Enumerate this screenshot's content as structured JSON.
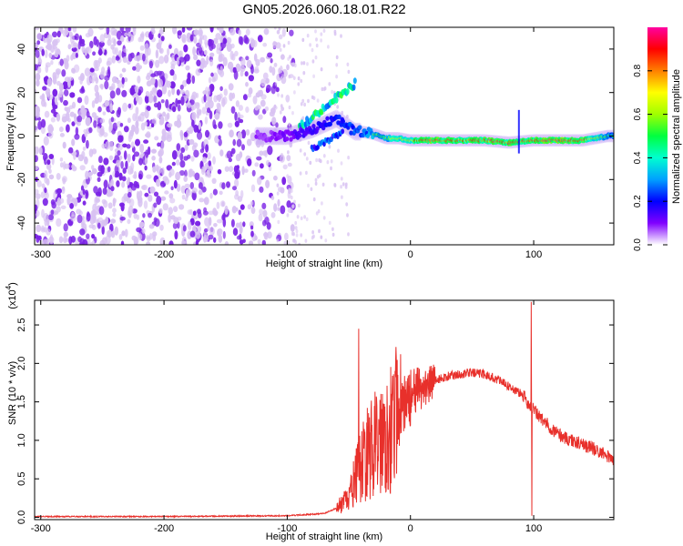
{
  "title": "GN05.2026.060.18.01.R22",
  "colors": {
    "background": "#ffffff",
    "axis": "#000000",
    "snr_line": "#e8302b",
    "spectro_noise_light": "#d8c2f2",
    "spectro_noise_dark": "#7a22e6",
    "colormap_stops": [
      "#ffffff",
      "#8000ff",
      "#0000ff",
      "#00a0ff",
      "#00ffd0",
      "#00ff40",
      "#a0ff00",
      "#ffff00",
      "#ff8000",
      "#ff0000",
      "#ff00a0"
    ]
  },
  "chart_data": [
    {
      "type": "heatmap",
      "name": "spectrogram",
      "xlabel": "Height of straight line (km)",
      "ylabel": "Frequency (Hz)",
      "xlim": [
        -305,
        165
      ],
      "ylim": [
        -50,
        50
      ],
      "xticks": [
        -300,
        -200,
        -100,
        0,
        100
      ],
      "xtick_labels": [
        "-300",
        "-200",
        "-100",
        "0",
        "100"
      ],
      "yticks": [
        -40,
        -20,
        0,
        20,
        40
      ],
      "ytick_labels": [
        "-40",
        "-20",
        "0",
        "20",
        "40"
      ],
      "colorbar": {
        "label": "Normalized spectral amplitude",
        "range": [
          0,
          1
        ],
        "ticks": [
          0.0,
          0.2,
          0.4,
          0.6,
          0.8
        ],
        "tick_labels": [
          "0.0",
          "0.2",
          "0.4",
          "0.6",
          "0.8"
        ]
      },
      "ridge": {
        "description_points_x": [
          -120,
          -100,
          -80,
          -60,
          -45,
          -40,
          -30,
          -20,
          -10,
          0,
          20,
          40,
          60,
          80,
          100,
          120,
          140,
          160
        ],
        "description_points_y": [
          0,
          0,
          3,
          8,
          2,
          2,
          1,
          -1,
          -1,
          -2,
          -2,
          -2,
          -2,
          -3,
          -2,
          -2,
          -2,
          0
        ],
        "amplitude": [
          0.15,
          0.2,
          0.3,
          0.35,
          0.45,
          0.45,
          0.55,
          0.6,
          0.7,
          0.8,
          0.95,
          0.85,
          0.9,
          0.85,
          0.9,
          0.95,
          0.9,
          0.5
        ]
      }
    },
    {
      "type": "line",
      "name": "snr",
      "xlabel": "Height of straight line (km)",
      "ylabel": "SNR (10 * v/v)",
      "y_multiplier_label": "(x10",
      "y_multiplier_exp": "4",
      "y_multiplier_close": ")",
      "xlim": [
        -305,
        165
      ],
      "ylim": [
        -0.03,
        2.82
      ],
      "xticks": [
        -300,
        -200,
        -100,
        0,
        100
      ],
      "xtick_labels": [
        "-300",
        "-200",
        "-100",
        "0",
        "100"
      ],
      "yticks": [
        0.0,
        0.5,
        1.0,
        1.5,
        2.0,
        2.5
      ],
      "ytick_labels": [
        "0.0",
        "0.5",
        "1.0",
        "1.5",
        "2.0",
        "2.5"
      ],
      "envelope": {
        "x": [
          -305,
          -200,
          -100,
          -70,
          -60,
          -50,
          -45,
          -40,
          -35,
          -30,
          -25,
          -20,
          -15,
          -10,
          -5,
          0,
          10,
          20,
          30,
          40,
          50,
          60,
          70,
          80,
          90,
          95,
          100,
          105,
          110,
          120,
          130,
          140,
          150,
          160,
          165
        ],
        "y": [
          0.01,
          0.01,
          0.02,
          0.05,
          0.12,
          0.25,
          0.5,
          0.7,
          0.85,
          0.95,
          1.05,
          1.15,
          1.25,
          1.35,
          1.45,
          1.55,
          1.68,
          1.78,
          1.83,
          1.86,
          1.88,
          1.86,
          1.8,
          1.7,
          1.6,
          1.5,
          1.4,
          1.3,
          1.22,
          1.08,
          1.0,
          0.95,
          0.88,
          0.8,
          0.75
        ]
      },
      "spikes": [
        {
          "x": -42,
          "y": 2.45
        },
        {
          "x": -12,
          "y": 2.05
        },
        {
          "x": -8,
          "y": 2.12
        },
        {
          "x": 98,
          "y": 2.8
        },
        {
          "x": 98.5,
          "y": 0.02
        }
      ]
    }
  ]
}
